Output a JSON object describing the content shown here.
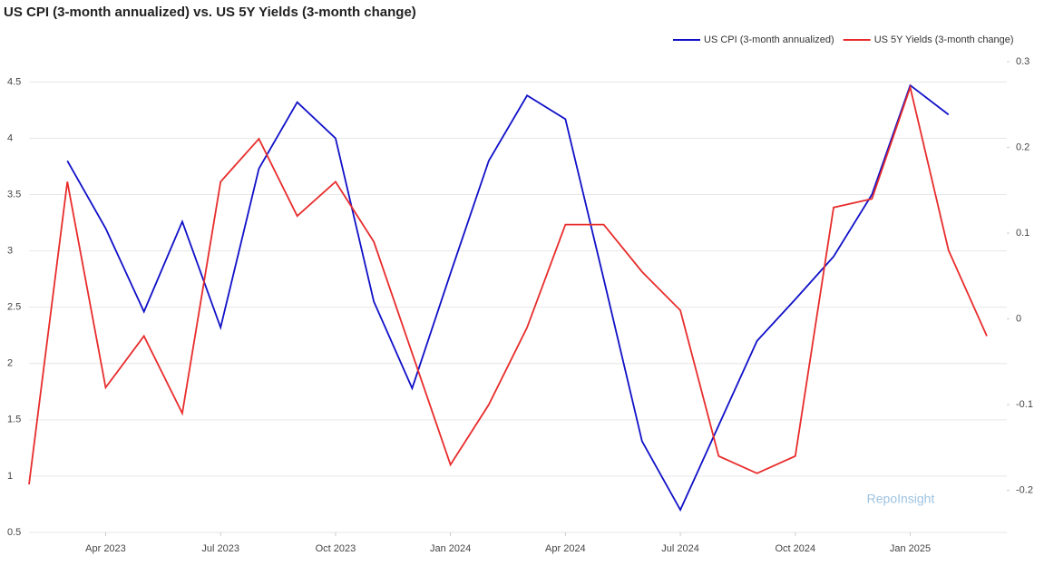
{
  "chart_data": {
    "type": "line",
    "title": "US CPI (3-month annualized) vs. US 5Y Yields (3-month change)",
    "watermark": "RepoInsight",
    "x": [
      "2023-02",
      "2023-03",
      "2023-04",
      "2023-05",
      "2023-06",
      "2023-07",
      "2023-08",
      "2023-09",
      "2023-10",
      "2023-11",
      "2023-12",
      "2024-01",
      "2024-02",
      "2024-03",
      "2024-04",
      "2024-05",
      "2024-06",
      "2024-07",
      "2024-08",
      "2024-09",
      "2024-10",
      "2024-11",
      "2024-12",
      "2025-01",
      "2025-02",
      "2025-03"
    ],
    "xticks": [
      {
        "value": "2023-04",
        "label": "Apr 2023"
      },
      {
        "value": "2023-07",
        "label": "Jul 2023"
      },
      {
        "value": "2023-10",
        "label": "Oct 2023"
      },
      {
        "value": "2024-01",
        "label": "Jan 2024"
      },
      {
        "value": "2024-04",
        "label": "Apr 2024"
      },
      {
        "value": "2024-07",
        "label": "Jul 2024"
      },
      {
        "value": "2024-10",
        "label": "Oct 2024"
      },
      {
        "value": "2025-01",
        "label": "Jan 2025"
      }
    ],
    "ylim": [
      0.5,
      4.68
    ],
    "yticks": [
      0.5,
      1,
      1.5,
      2,
      2.5,
      3,
      3.5,
      4,
      4.5
    ],
    "y2lim": [
      -0.249,
      0.3
    ],
    "y2ticks": [
      -0.2,
      -0.1,
      0,
      0.1,
      0.2,
      0.3
    ],
    "grid": true,
    "legend": "top-right",
    "series": [
      {
        "name": "US CPI (3-month annualized)",
        "color": "#1010c8",
        "values": [
          null,
          3.8,
          3.2,
          2.46,
          3.26,
          2.32,
          3.73,
          4.32,
          4.0,
          2.55,
          1.78,
          2.8,
          3.8,
          4.38,
          4.17,
          2.75,
          1.31,
          0.7,
          1.45,
          2.2,
          2.57,
          2.95,
          3.5,
          4.47,
          4.21,
          null
        ]
      },
      {
        "name": "US 5Y Yields (3-month change)",
        "color": "#e82c2c",
        "axis": "y2",
        "values": [
          -0.193,
          0.16,
          -0.08,
          -0.02,
          -0.11,
          0.16,
          0.21,
          0.12,
          0.16,
          0.09,
          -0.04,
          -0.17,
          -0.1,
          -0.01,
          0.11,
          0.11,
          0.055,
          0.01,
          -0.16,
          -0.18,
          -0.16,
          0.13,
          0.14,
          0.27,
          0.08,
          -0.02
        ]
      }
    ]
  }
}
